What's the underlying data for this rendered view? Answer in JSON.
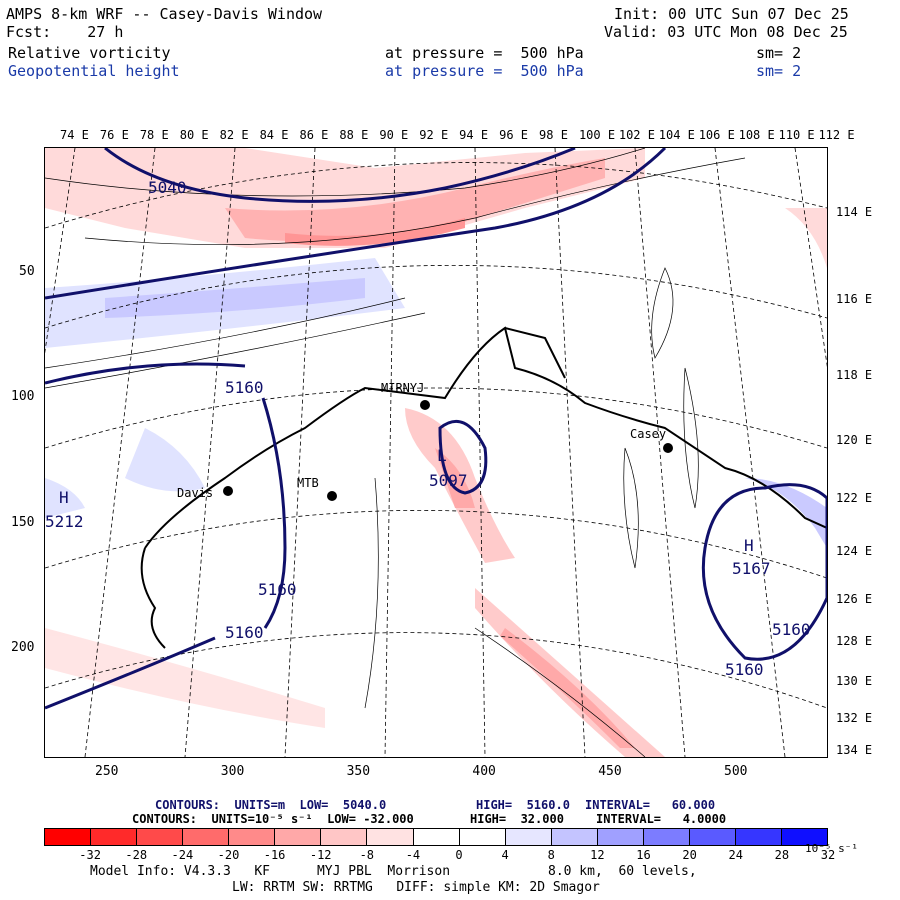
{
  "header": {
    "title": "AMPS 8-km WRF -- Casey-Davis Window",
    "fcst": "Fcst:    27 h",
    "init": "Init: 00 UTC Sun 07 Dec 25",
    "valid": "Valid: 03 UTC Mon 08 Dec 25",
    "field1": {
      "name": "Relative vorticity",
      "pressure": "at pressure =  500 hPa",
      "sm": "sm= 2"
    },
    "field2": {
      "name": "Geopotential height",
      "pressure": "at pressure =  500 hPa",
      "sm": "sm= 2"
    }
  },
  "top_lon_labels": [
    "74 E",
    "76 E",
    "78 E",
    "80 E",
    "82 E",
    "84 E",
    "86 E",
    "88 E",
    "90 E",
    "92 E",
    "94 E",
    "96 E",
    "98 E",
    "100 E",
    "102 E",
    "104 E",
    "106 E",
    "108 E",
    "110 E",
    "112 E"
  ],
  "right_lon_labels": [
    "114 E",
    "116 E",
    "118 E",
    "120 E",
    "122 E",
    "124 E",
    "126 E",
    "128 E",
    "130 E",
    "132 E",
    "134 E"
  ],
  "x_ticks": [
    "250",
    "300",
    "350",
    "400",
    "450",
    "500"
  ],
  "y_ticks": [
    "50",
    "100",
    "150",
    "200"
  ],
  "map_labels": {
    "stations": [
      "MIRNYJ",
      "Davis",
      "MTB",
      "Casey"
    ],
    "heights": [
      "5040",
      "5160",
      "5160",
      "5160",
      "5097",
      "5212",
      "5167",
      "5160",
      "5160"
    ],
    "highs_lows": [
      "H",
      "L",
      "H"
    ]
  },
  "contour_info": {
    "line1": {
      "label": "CONTOURS:  UNITS=m  LOW=  5040.0",
      "high": "HIGH=  5160.0",
      "interval": "INTERVAL=   60.000"
    },
    "line2": {
      "label": "CONTOURS:  UNITS=10⁻⁵ s⁻¹  LOW= -32.000",
      "high": "HIGH=  32.000",
      "interval": "INTERVAL=   4.0000"
    }
  },
  "colorbar": {
    "labels": [
      "-32",
      "-28",
      "-24",
      "-20",
      "-16",
      "-12",
      "-8",
      "-4",
      "0",
      "4",
      "8",
      "12",
      "16",
      "20",
      "24",
      "28",
      "32"
    ],
    "units": "10⁻⁵ s⁻¹",
    "colors": [
      "#ff0000",
      "#ff2a2a",
      "#ff4a4a",
      "#ff6b6b",
      "#ff8a8a",
      "#ffa8a8",
      "#ffc6c6",
      "#ffe2e2",
      "#ffffff",
      "#ffffff",
      "#e6e6ff",
      "#c4c4ff",
      "#a0a0ff",
      "#7c7cff",
      "#5a5aff",
      "#3636ff",
      "#0f0fff"
    ]
  },
  "footer": {
    "line1a": "Model Info: V4.3.3   KF      MYJ PBL  Morrison",
    "line1b": "8.0 km,  60 levels,",
    "line2": "LW: RRTM SW: RRTMG   DIFF: simple KM: 2D Smagor"
  }
}
